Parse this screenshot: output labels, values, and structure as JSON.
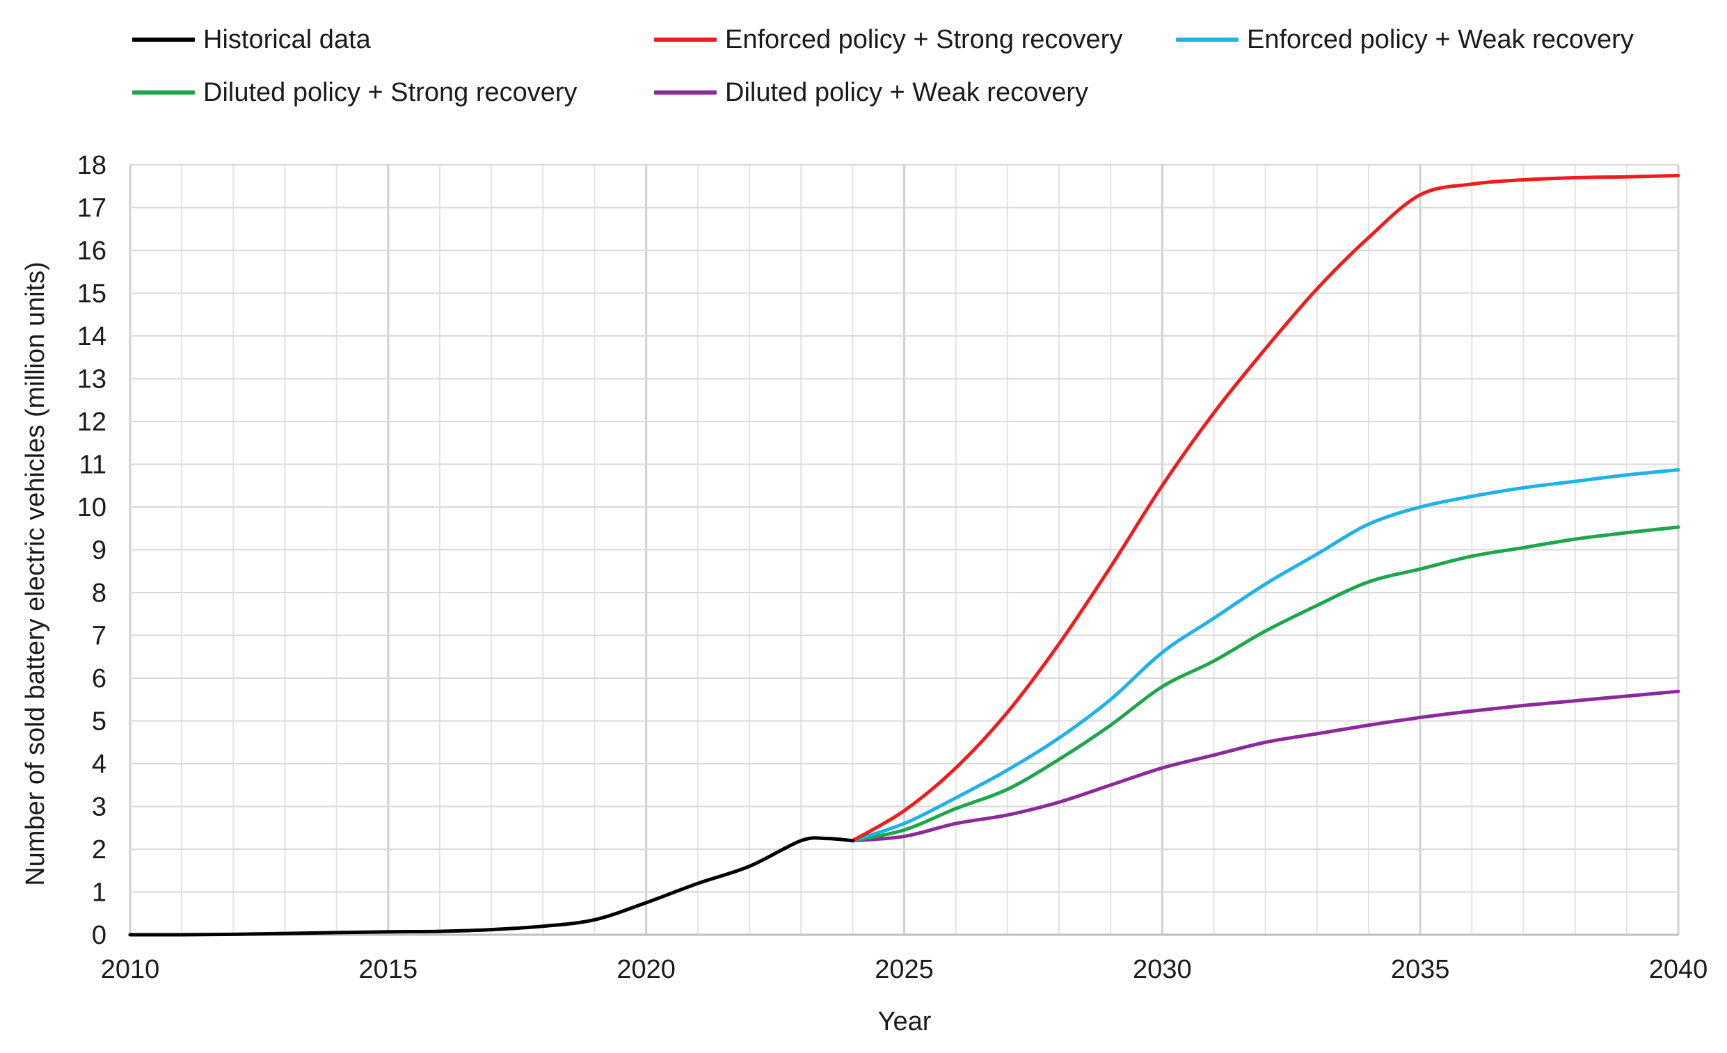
{
  "chart_data": {
    "type": "line",
    "title": "",
    "xlabel": "Year",
    "ylabel": "Number of sold battery electric vehicles (million units)",
    "xlim": [
      2010,
      2040
    ],
    "ylim": [
      0,
      18
    ],
    "x_ticks": [
      2010,
      2015,
      2020,
      2025,
      2030,
      2035,
      2040
    ],
    "y_ticks": [
      0,
      1,
      2,
      3,
      4,
      5,
      6,
      7,
      8,
      9,
      10,
      11,
      12,
      13,
      14,
      15,
      16,
      17,
      18
    ],
    "grid": true,
    "legend_position": "top",
    "series": [
      {
        "name": "Historical data",
        "color": "#000000",
        "points": [
          [
            2010,
            0.0
          ],
          [
            2011,
            0.0
          ],
          [
            2012,
            0.01
          ],
          [
            2013,
            0.03
          ],
          [
            2014,
            0.05
          ],
          [
            2015,
            0.07
          ],
          [
            2016,
            0.08
          ],
          [
            2017,
            0.12
          ],
          [
            2018,
            0.2
          ],
          [
            2019,
            0.35
          ],
          [
            2020,
            0.75
          ],
          [
            2021,
            1.2
          ],
          [
            2022,
            1.6
          ],
          [
            2023,
            2.2
          ],
          [
            2023.5,
            2.25
          ],
          [
            2024,
            2.2
          ]
        ]
      },
      {
        "name": "Enforced policy + Strong recovery",
        "color": "#ee1c1c",
        "points": [
          [
            2024,
            2.2
          ],
          [
            2025,
            2.9
          ],
          [
            2026,
            3.9
          ],
          [
            2027,
            5.2
          ],
          [
            2028,
            6.8
          ],
          [
            2029,
            8.6
          ],
          [
            2030,
            10.5
          ],
          [
            2031,
            12.2
          ],
          [
            2032,
            13.7
          ],
          [
            2033,
            15.1
          ],
          [
            2034,
            16.3
          ],
          [
            2035,
            17.3
          ],
          [
            2036,
            17.55
          ],
          [
            2037,
            17.65
          ],
          [
            2038,
            17.7
          ],
          [
            2039,
            17.72
          ],
          [
            2040,
            17.75
          ]
        ]
      },
      {
        "name": "Enforced policy + Weak recovery",
        "color": "#1fb1e9",
        "points": [
          [
            2024,
            2.2
          ],
          [
            2025,
            2.6
          ],
          [
            2026,
            3.2
          ],
          [
            2027,
            3.85
          ],
          [
            2028,
            4.6
          ],
          [
            2029,
            5.5
          ],
          [
            2030,
            6.6
          ],
          [
            2031,
            7.4
          ],
          [
            2032,
            8.2
          ],
          [
            2033,
            8.9
          ],
          [
            2034,
            9.6
          ],
          [
            2035,
            10.0
          ],
          [
            2036,
            10.25
          ],
          [
            2037,
            10.45
          ],
          [
            2038,
            10.6
          ],
          [
            2039,
            10.75
          ],
          [
            2040,
            10.87
          ]
        ]
      },
      {
        "name": "Diluted policy + Strong recovery",
        "color": "#1ea64a",
        "points": [
          [
            2024,
            2.2
          ],
          [
            2025,
            2.45
          ],
          [
            2026,
            2.95
          ],
          [
            2027,
            3.4
          ],
          [
            2028,
            4.1
          ],
          [
            2029,
            4.9
          ],
          [
            2030,
            5.8
          ],
          [
            2031,
            6.4
          ],
          [
            2032,
            7.1
          ],
          [
            2033,
            7.7
          ],
          [
            2034,
            8.25
          ],
          [
            2035,
            8.55
          ],
          [
            2036,
            8.85
          ],
          [
            2037,
            9.05
          ],
          [
            2038,
            9.25
          ],
          [
            2039,
            9.4
          ],
          [
            2040,
            9.53
          ]
        ]
      },
      {
        "name": "Diluted policy + Weak recovery",
        "color": "#8b2a9b",
        "points": [
          [
            2024,
            2.2
          ],
          [
            2025,
            2.3
          ],
          [
            2026,
            2.6
          ],
          [
            2027,
            2.8
          ],
          [
            2028,
            3.1
          ],
          [
            2029,
            3.5
          ],
          [
            2030,
            3.9
          ],
          [
            2031,
            4.2
          ],
          [
            2032,
            4.5
          ],
          [
            2033,
            4.7
          ],
          [
            2034,
            4.9
          ],
          [
            2035,
            5.08
          ],
          [
            2036,
            5.23
          ],
          [
            2037,
            5.36
          ],
          [
            2038,
            5.47
          ],
          [
            2039,
            5.58
          ],
          [
            2040,
            5.69
          ]
        ]
      }
    ]
  }
}
